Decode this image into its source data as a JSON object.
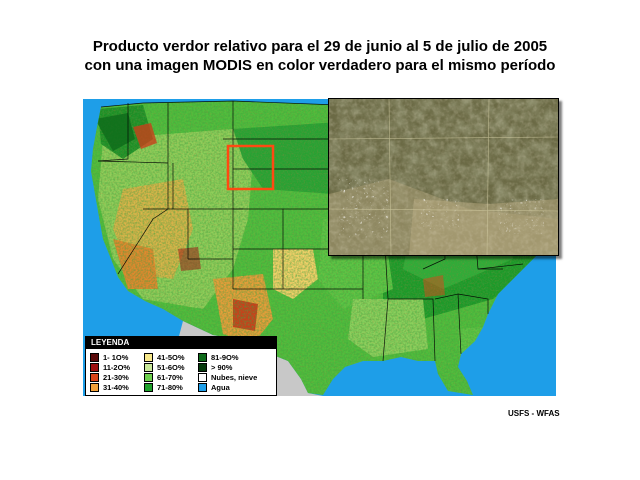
{
  "title": {
    "line1": "Producto verdor relativo para el 29 de junio al 5 de julio de 2005",
    "line2": "con una imagen MODIS en color verdadero para el mismo período"
  },
  "colors": {
    "water": "#1e9ee8",
    "land_outside": "#c8c8c8",
    "highlight_box": "#ff4a12",
    "state_lines": "#000000"
  },
  "legend": {
    "header": "LEYENDA",
    "items": [
      {
        "label": "1- 1O%",
        "color": "#5a0a0a"
      },
      {
        "label": "11-2O%",
        "color": "#9e1010"
      },
      {
        "label": "21-30%",
        "color": "#d9451a"
      },
      {
        "label": "31-40%",
        "color": "#f2a13a"
      },
      {
        "label": "41-5O%",
        "color": "#f7e88a"
      },
      {
        "label": "51-6O%",
        "color": "#c9e89a"
      },
      {
        "label": "61-70%",
        "color": "#6fd14f"
      },
      {
        "label": "71-80%",
        "color": "#1fa12c"
      },
      {
        "label": "81-9O%",
        "color": "#0e6a1a"
      },
      {
        "label": "> 90%",
        "color": "#063a0c"
      },
      {
        "label": "Nubes, nieve",
        "color": "#ffffff"
      },
      {
        "label": "Agua",
        "color": "#1e9ee8"
      }
    ]
  },
  "credit": "USFS - WFAS"
}
